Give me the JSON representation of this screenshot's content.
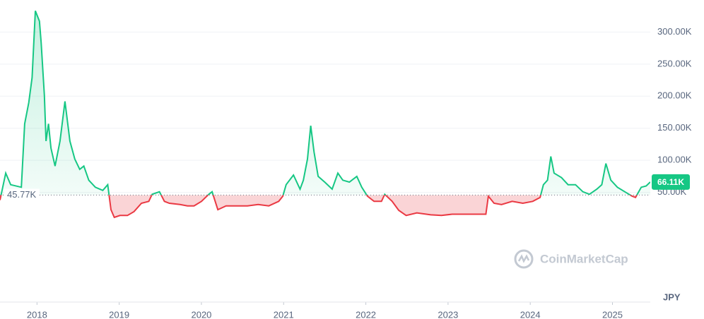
{
  "chart_data": {
    "type": "line",
    "currency": "JPY",
    "watermark": "CoinMarketCap",
    "baseline": {
      "value": 45770,
      "label": "45.77K"
    },
    "current": {
      "value": 66110,
      "label": "66.11K"
    },
    "up_color": "#16c784",
    "down_color": "#ea3943",
    "grid": true,
    "xlim": [
      2017.55,
      2025.46
    ],
    "xticks": [
      2018,
      2019,
      2020,
      2021,
      2022,
      2023,
      2024,
      2025
    ],
    "ylim": [
      0,
      350000
    ],
    "yticks": [
      {
        "value": 50000,
        "label": "50.00K"
      },
      {
        "value": 100000,
        "label": "100.00K"
      },
      {
        "value": 150000,
        "label": "150.00K"
      },
      {
        "value": 200000,
        "label": "200.00K"
      },
      {
        "value": 250000,
        "label": "250.00K"
      },
      {
        "value": 300000,
        "label": "300.00K"
      }
    ],
    "x": [
      2017.55,
      2017.62,
      2017.68,
      2017.81,
      2017.85,
      2017.9,
      2017.94,
      2017.98,
      2018.03,
      2018.05,
      2018.09,
      2018.11,
      2018.14,
      2018.17,
      2018.22,
      2018.28,
      2018.34,
      2018.4,
      2018.46,
      2018.52,
      2018.57,
      2018.63,
      2018.71,
      2018.8,
      2018.86,
      2018.9,
      2018.94,
      2019.01,
      2019.1,
      2019.18,
      2019.27,
      2019.36,
      2019.4,
      2019.49,
      2019.55,
      2019.61,
      2019.74,
      2019.83,
      2019.91,
      2020.0,
      2020.09,
      2020.13,
      2020.2,
      2020.3,
      2020.43,
      2020.56,
      2020.69,
      2020.82,
      2020.94,
      2020.99,
      2021.03,
      2021.12,
      2021.2,
      2021.24,
      2021.29,
      2021.33,
      2021.37,
      2021.42,
      2021.5,
      2021.59,
      2021.66,
      2021.72,
      2021.8,
      2021.89,
      2021.95,
      2022.02,
      2022.1,
      2022.19,
      2022.23,
      2022.32,
      2022.4,
      2022.49,
      2022.62,
      2022.79,
      2022.92,
      2023.05,
      2023.22,
      2023.35,
      2023.46,
      2023.49,
      2023.56,
      2023.65,
      2023.78,
      2023.91,
      2024.03,
      2024.12,
      2024.16,
      2024.21,
      2024.25,
      2024.29,
      2024.38,
      2024.46,
      2024.55,
      2024.64,
      2024.72,
      2024.81,
      2024.87,
      2024.92,
      2024.98,
      2025.06,
      2025.15,
      2025.24,
      2025.28,
      2025.35,
      2025.41,
      2025.46
    ],
    "values": [
      38000,
      80000,
      62000,
      58000,
      157000,
      190000,
      229000,
      333000,
      317000,
      284000,
      201000,
      130000,
      157000,
      119000,
      91000,
      130000,
      192000,
      130000,
      102000,
      86000,
      91000,
      69000,
      58000,
      53000,
      62000,
      23000,
      11000,
      14000,
      14000,
      20000,
      33000,
      36000,
      47000,
      51000,
      36000,
      33000,
      31000,
      29000,
      29000,
      36000,
      47000,
      51000,
      23000,
      29000,
      29000,
      29000,
      31000,
      29000,
      36000,
      44000,
      62000,
      77000,
      55000,
      69000,
      102000,
      154000,
      113000,
      75000,
      66000,
      55000,
      80000,
      69000,
      66000,
      75000,
      58000,
      44000,
      36000,
      36000,
      47000,
      36000,
      22000,
      14000,
      18000,
      15000,
      14000,
      16000,
      16000,
      16000,
      16000,
      44000,
      33000,
      31000,
      36000,
      33000,
      36000,
      42000,
      62000,
      69000,
      106000,
      80000,
      73000,
      62000,
      62000,
      51000,
      47000,
      55000,
      62000,
      95000,
      69000,
      58000,
      51000,
      44000,
      42000,
      58000,
      60000,
      66110
    ]
  }
}
